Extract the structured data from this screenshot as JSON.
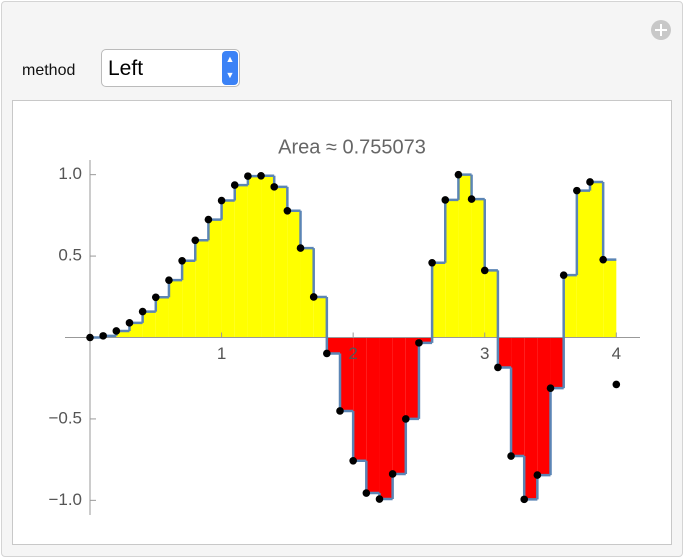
{
  "controls": {
    "method_label": "method",
    "method_value": "Left"
  },
  "chart_data": {
    "type": "riemann",
    "title": "Area ≈ 0.755073",
    "x": [
      0,
      0.1,
      0.2,
      0.3,
      0.4,
      0.5,
      0.6,
      0.7,
      0.8,
      0.9,
      1,
      1.1,
      1.2,
      1.3,
      1.4,
      1.5,
      1.6,
      1.7,
      1.8,
      1.9,
      2,
      2.1,
      2.2,
      2.3,
      2.4,
      2.5,
      2.6,
      2.7,
      2.8,
      2.9,
      3,
      3.1,
      3.2,
      3.3,
      3.4,
      3.5,
      3.6,
      3.7,
      3.8,
      3.9,
      4
    ],
    "values": [
      0,
      0.01,
      0.04,
      0.09,
      0.159,
      0.247,
      0.352,
      0.471,
      0.597,
      0.724,
      0.841,
      0.936,
      0.991,
      0.993,
      0.925,
      0.778,
      0.549,
      0.249,
      -0.098,
      -0.451,
      -0.757,
      -0.955,
      -0.992,
      -0.838,
      -0.5,
      -0.033,
      0.459,
      0.845,
      1,
      0.85,
      0.412,
      -0.184,
      -0.728,
      -0.994,
      -0.845,
      -0.311,
      0.383,
      0.902,
      0.955,
      0.478,
      -0.288
    ],
    "positive_color": "#ffff00",
    "negative_color": "#ff0000",
    "step_color": "#5b85b5",
    "point_color": "#000000",
    "xlim": [
      -0.19,
      4.18
    ],
    "ylim": [
      -1.09,
      1.09
    ],
    "xticks": [
      1,
      2,
      3,
      4
    ],
    "yticks": [
      {
        "value": -1,
        "label": "−1.0"
      },
      {
        "value": -0.5,
        "label": "−0.5"
      },
      0.5,
      {
        "value": 1,
        "label": "1.0"
      }
    ]
  }
}
